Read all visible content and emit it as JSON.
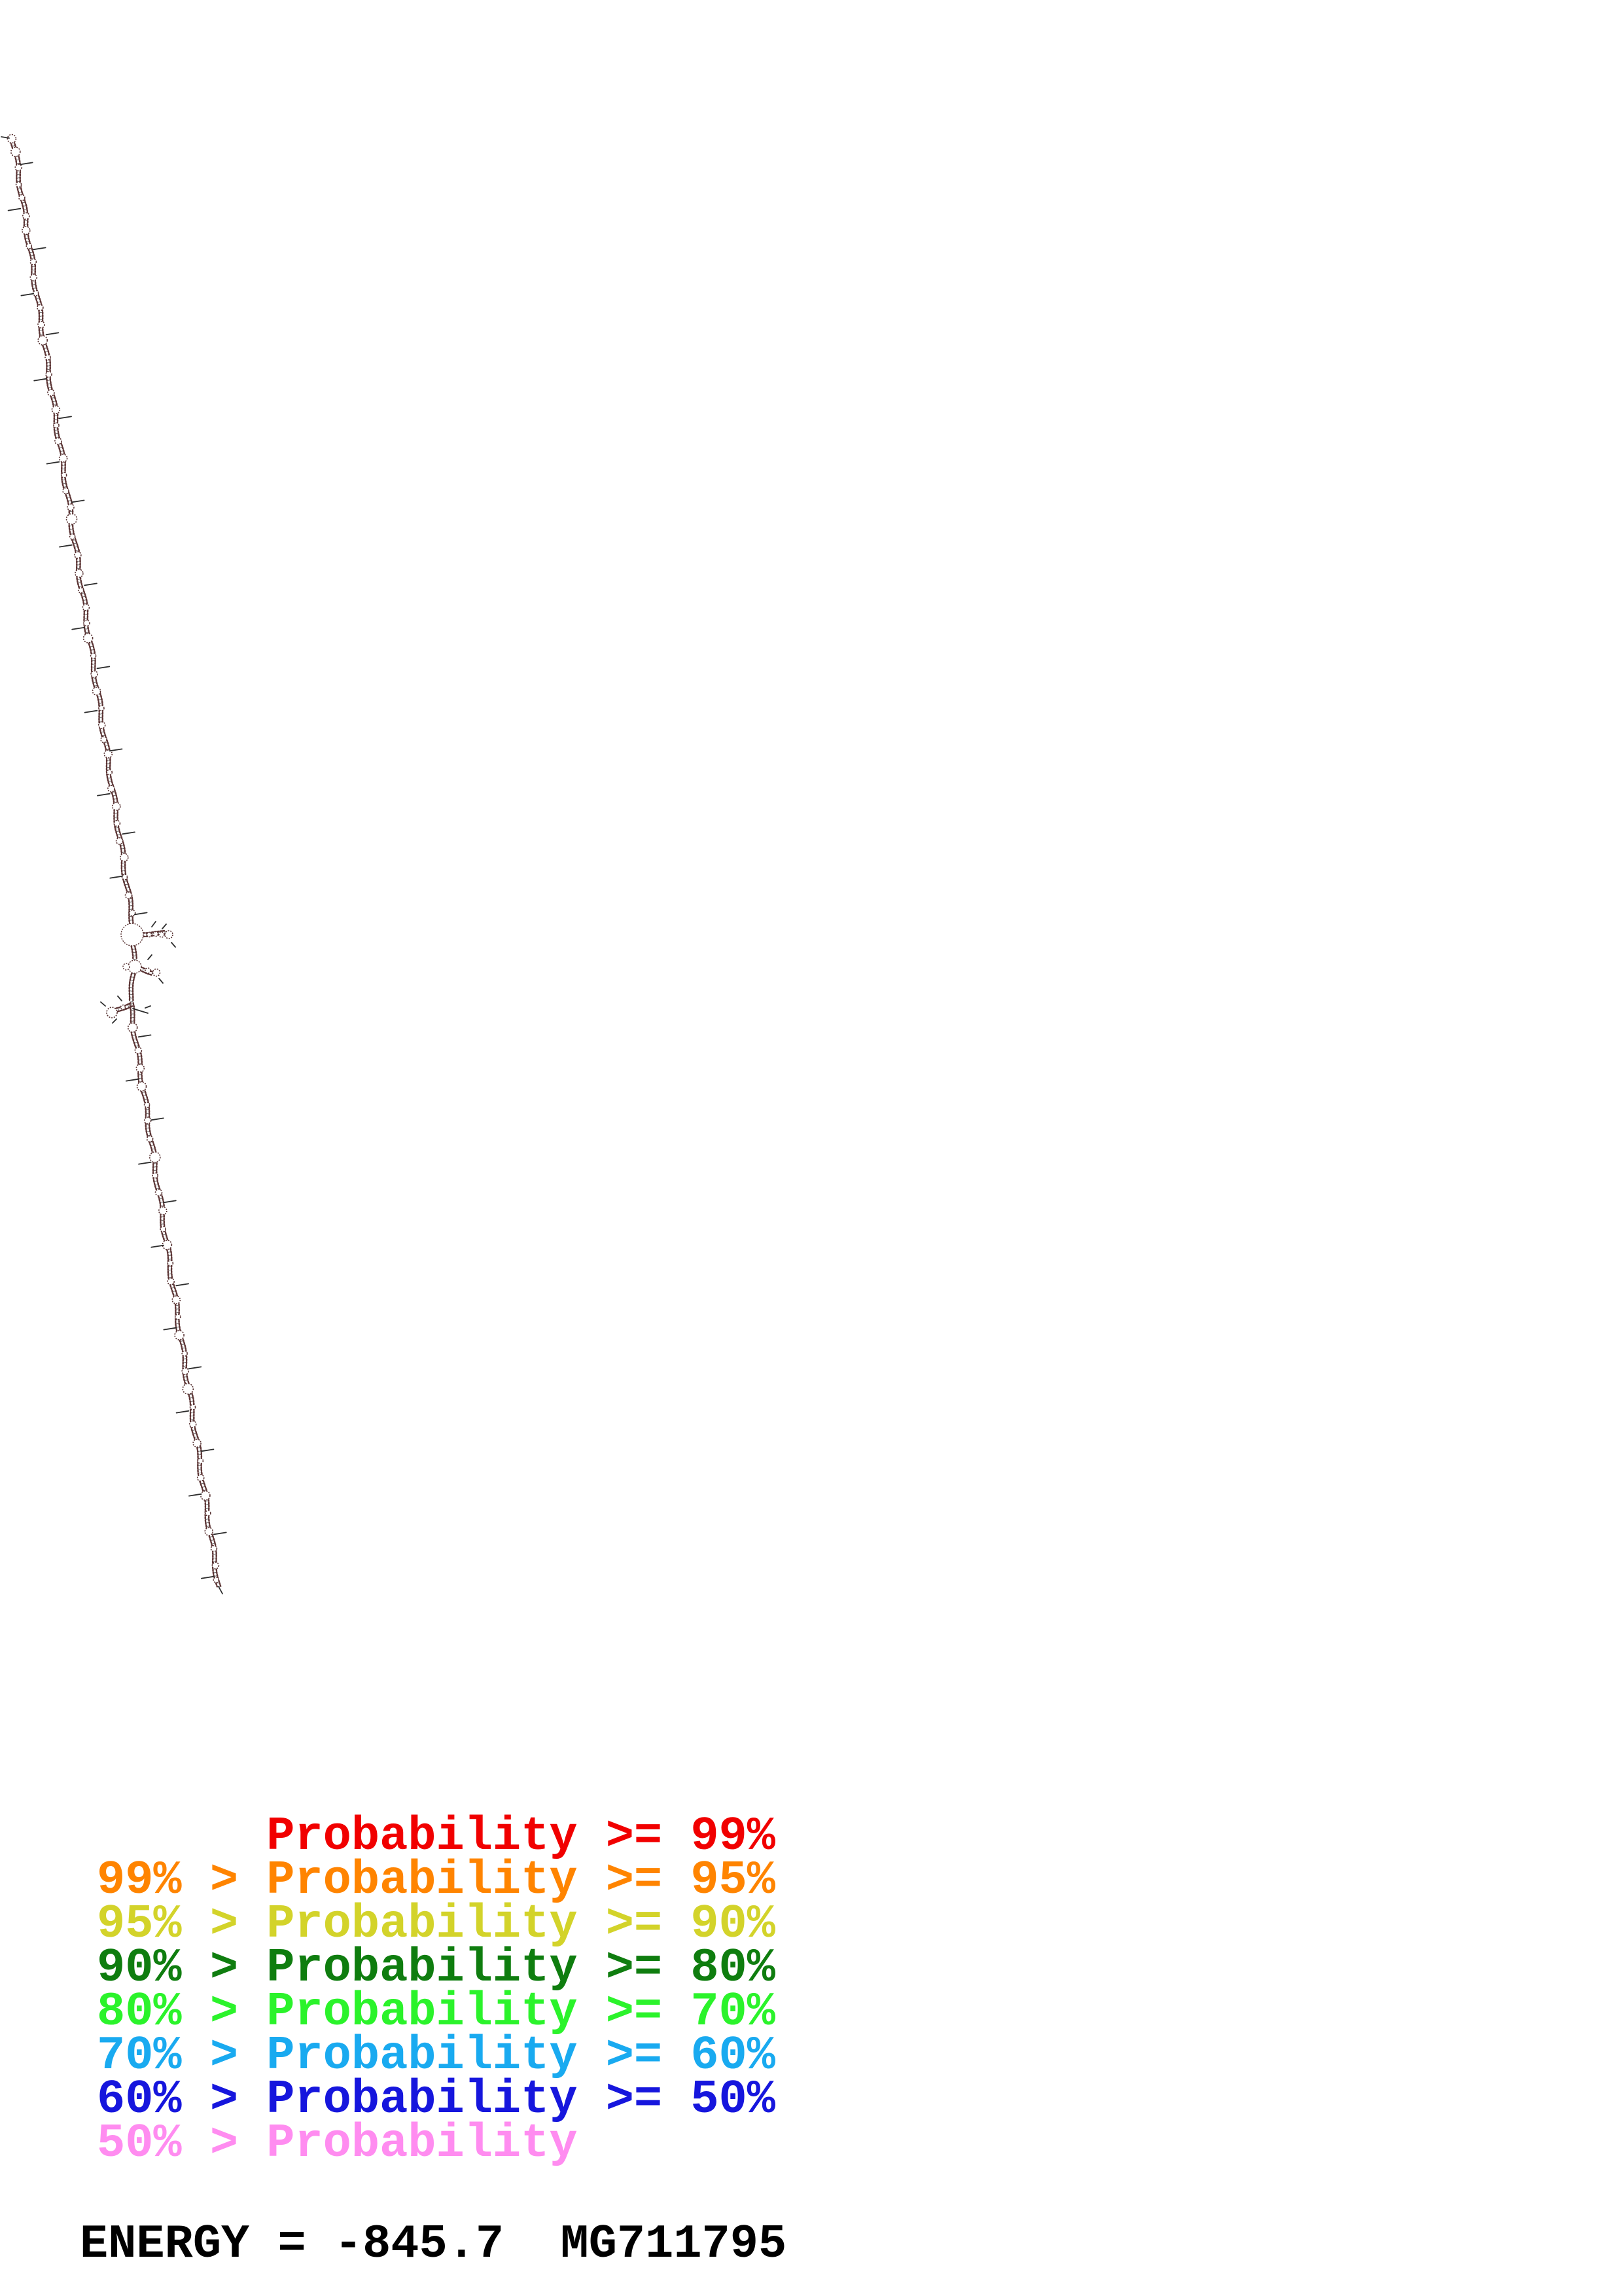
{
  "legend": {
    "rows": [
      {
        "text": "      Probability >= 99%",
        "color": "#f10000"
      },
      {
        "text": "99% > Probability >= 95%",
        "color": "#ff8400"
      },
      {
        "text": "95% > Probability >= 90%",
        "color": "#d3d32a"
      },
      {
        "text": "90% > Probability >= 80%",
        "color": "#0f7d0f"
      },
      {
        "text": "80% > Probability >= 70%",
        "color": "#2bf32b"
      },
      {
        "text": "70% > Probability >= 60%",
        "color": "#19aaf0"
      },
      {
        "text": "60% > Probability >= 50%",
        "color": "#1616dd"
      },
      {
        "text": "50% > Probability",
        "color": "#ff8cf0"
      }
    ]
  },
  "energy": {
    "text": "ENERGY = -845.7  MG711795",
    "label": "ENERGY",
    "value": "-845.7",
    "sequence_id": "MG711795",
    "color": "#000000"
  },
  "structure": {
    "colors": {
      "strand": "#5b3434",
      "rung": "#474747",
      "tick": "#2d2d2d",
      "loop_stroke": "#553030",
      "fill": "#ffffff"
    },
    "wiggle": {
      "amp": 2.2,
      "k": 0.0827
    },
    "strand_gap": 2.7,
    "runs": [
      [
        20,
        212,
        203,
        1411
      ],
      [
        203,
        1445,
        204,
        1466
      ],
      [
        205,
        1488,
        199,
        1530
      ],
      [
        199,
        1533,
        334,
        2424
      ]
    ],
    "loops": [
      [
        212,
        6.5
      ],
      [
        232,
        7
      ],
      [
        256,
        5
      ],
      [
        282,
        4
      ],
      [
        302,
        4.5
      ],
      [
        330,
        5
      ],
      [
        352,
        6
      ],
      [
        376,
        4
      ],
      [
        400,
        4.5
      ],
      [
        424,
        5
      ],
      [
        448,
        4
      ],
      [
        470,
        4.5
      ],
      [
        496,
        5
      ],
      [
        520,
        7
      ],
      [
        546,
        4
      ],
      [
        572,
        4.5
      ],
      [
        600,
        5
      ],
      [
        626,
        6
      ],
      [
        650,
        4
      ],
      [
        674,
        5
      ],
      [
        700,
        6
      ],
      [
        726,
        4
      ],
      [
        750,
        4.5
      ],
      [
        775,
        5
      ],
      [
        793,
        8
      ],
      [
        820,
        4
      ],
      [
        848,
        5
      ],
      [
        876,
        6
      ],
      [
        902,
        4
      ],
      [
        928,
        5
      ],
      [
        952,
        4.5
      ],
      [
        975,
        7
      ],
      [
        1002,
        4
      ],
      [
        1030,
        5
      ],
      [
        1056,
        6
      ],
      [
        1082,
        4
      ],
      [
        1108,
        5
      ],
      [
        1130,
        4.5
      ],
      [
        1152,
        6
      ],
      [
        1180,
        4
      ],
      [
        1205,
        5
      ],
      [
        1232,
        6
      ],
      [
        1258,
        4.5
      ],
      [
        1285,
        5
      ],
      [
        1310,
        6
      ],
      [
        1340,
        4
      ],
      [
        1368,
        5
      ],
      [
        1395,
        4.5
      ],
      [
        1570,
        7
      ],
      [
        1605,
        5
      ],
      [
        1632,
        6
      ],
      [
        1660,
        7
      ],
      [
        1688,
        4
      ],
      [
        1712,
        5
      ],
      [
        1740,
        4.5
      ],
      [
        1768,
        8
      ],
      [
        1796,
        4
      ],
      [
        1822,
        5
      ],
      [
        1850,
        6
      ],
      [
        1878,
        4
      ],
      [
        1902,
        7
      ],
      [
        1930,
        4
      ],
      [
        1958,
        5
      ],
      [
        1986,
        6
      ],
      [
        2012,
        4
      ],
      [
        2040,
        7
      ],
      [
        2068,
        4
      ],
      [
        2095,
        5
      ],
      [
        2122,
        8
      ],
      [
        2150,
        4
      ],
      [
        2176,
        5
      ],
      [
        2205,
        6
      ],
      [
        2232,
        4
      ],
      [
        2258,
        5
      ],
      [
        2285,
        7
      ],
      [
        2312,
        4
      ],
      [
        2340,
        6
      ],
      [
        2366,
        4.5
      ],
      [
        2392,
        5
      ],
      [
        2414,
        4
      ]
    ],
    "ticks": [
      [
        252,
        1
      ],
      [
        318,
        -1
      ],
      [
        382,
        1
      ],
      [
        448,
        -1
      ],
      [
        512,
        1
      ],
      [
        578,
        -1
      ],
      [
        640,
        1
      ],
      [
        705,
        -1
      ],
      [
        768,
        1
      ],
      [
        832,
        -1
      ],
      [
        895,
        1
      ],
      [
        958,
        -1
      ],
      [
        1022,
        1
      ],
      [
        1085,
        -1
      ],
      [
        1148,
        1
      ],
      [
        1212,
        -1
      ],
      [
        1275,
        1
      ],
      [
        1338,
        -1
      ],
      [
        1398,
        1
      ],
      [
        1585,
        1
      ],
      [
        1648,
        -1
      ],
      [
        1712,
        1
      ],
      [
        1775,
        -1
      ],
      [
        1838,
        1
      ],
      [
        1902,
        -1
      ],
      [
        1965,
        1
      ],
      [
        2028,
        -1
      ],
      [
        2092,
        1
      ],
      [
        2155,
        -1
      ],
      [
        2218,
        1
      ],
      [
        2282,
        -1
      ],
      [
        2345,
        1
      ],
      [
        2408,
        -1
      ]
    ],
    "extra_ticks": [
      [
        2,
        209,
        14,
        211
      ],
      [
        232,
        1416,
        238,
        1408
      ],
      [
        248,
        1419,
        254,
        1412
      ],
      [
        262,
        1440,
        268,
        1447
      ],
      [
        226,
        1466,
        232,
        1459
      ],
      [
        243,
        1495,
        249,
        1502
      ],
      [
        186,
        1529,
        180,
        1522
      ],
      [
        203,
        1541,
        226,
        1548
      ],
      [
        161,
        1537,
        154,
        1531
      ],
      [
        178,
        1557,
        172,
        1563
      ],
      [
        222,
        1540,
        230,
        1537
      ],
      [
        334,
        2424,
        340,
        2435
      ]
    ],
    "branches": [
      {
        "run": [
          219,
          1426,
          252,
          1427
        ],
        "loops": [
          [
            228,
            1428,
            3.5
          ],
          [
            238,
            1427,
            3.5
          ],
          [
            247,
            1428,
            4
          ]
        ],
        "terminal": [
          258,
          1428,
          6
        ]
      },
      {
        "run": [
          214,
          1480,
          233,
          1485
        ],
        "loops": [
          [
            226,
            1483,
            4
          ]
        ],
        "terminal": [
          239,
          1486,
          5.5
        ]
      },
      {
        "run": [
          200,
          1533,
          176,
          1544
        ],
        "loops": [
          [
            188,
            1539,
            3.5
          ]
        ],
        "terminal": [
          171,
          1547,
          8
        ]
      }
    ],
    "circles": [
      [
        202,
        1428,
        17
      ],
      [
        206,
        1477,
        10
      ],
      [
        193,
        1477,
        5
      ]
    ]
  }
}
